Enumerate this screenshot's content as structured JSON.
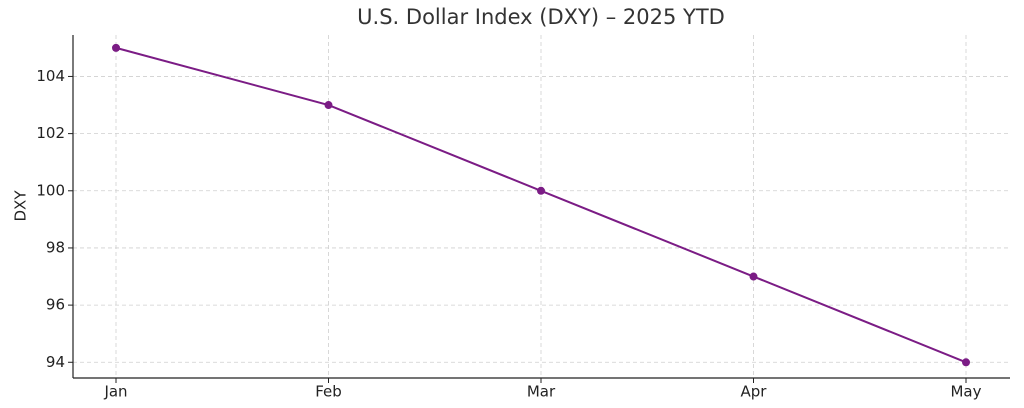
{
  "chart_data": {
    "type": "line",
    "title": "U.S. Dollar Index (DXY) – 2025 YTD",
    "ylabel": "DXY",
    "categories": [
      "Jan",
      "Feb",
      "Mar",
      "Apr",
      "May"
    ],
    "series": [
      {
        "name": "DXY",
        "color": "#7b1c85",
        "values": [
          105,
          103,
          100,
          97,
          94
        ]
      }
    ],
    "ylim": [
      93.45,
      105.45
    ],
    "yticks": [
      94,
      96,
      98,
      100,
      102,
      104
    ],
    "grid": true
  }
}
